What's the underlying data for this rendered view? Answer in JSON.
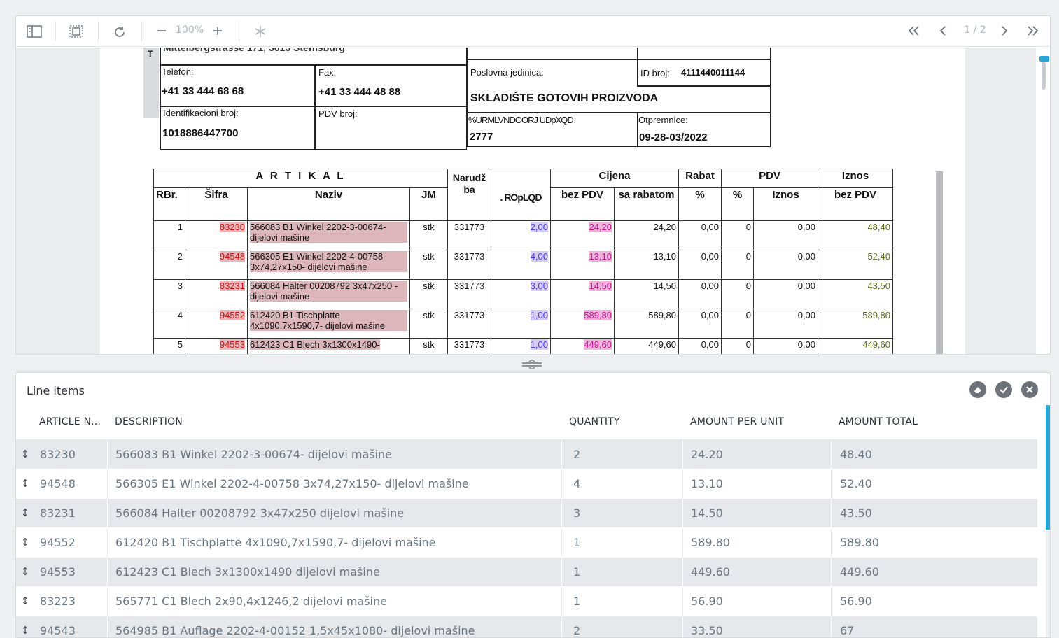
{
  "toolbar": {
    "zoom": "100%",
    "page_indicator": "1 / 2"
  },
  "document": {
    "address": "Mittelbergstrasse 171, 3613 Steffisburg",
    "telefon_label": "Telefon:",
    "telefon": "+41 33 444 68 68",
    "fax_label": "Fax:",
    "fax": "+41 33 444 48 88",
    "ident_label": "Identifikacioni broj:",
    "ident": "1018886447700",
    "pdv_label": "PDV broj:",
    "poslovna_label": "Poslovna jedinica:",
    "id_broj_label": "ID broj:",
    "id_broj": "4111440011144",
    "skladiste": "SKLADIŠTE GOTOVIH PROIZVODA",
    "garbled_label": "%URMLVNDOORJ UDpXQD",
    "garbled_value": "2777",
    "otpremnice_label": "Otpremnice:",
    "otpremnice": "09-28-03/2022",
    "h_artikal": "A R T I K A L",
    "h_cijena": "Cijena",
    "h_rabat": "Rabat",
    "h_pdv": "PDV",
    "h_iznos": "Iznos",
    "h_rbr": "RBr.",
    "h_sifra": "Šifra",
    "h_naziv": "Naziv",
    "h_jm": "JM",
    "h_narudzba": "Narudž ba",
    "h_kolicina": ". ROpLQD",
    "h_bezpdv": "bez PDV",
    "h_sarabatom": "sa rabatom",
    "h_pct": "%",
    "h_pdvpct": "%",
    "h_pdviznos": "Iznos",
    "h_iznosbez": "bez PDV",
    "rows": [
      {
        "rbr": "1",
        "sifra": "83230",
        "naziv": "566083 B1 Winkel 2202-3-00674- dijelovi mašine",
        "jm": "stk",
        "narudzba": "331773",
        "kol": "2,00",
        "cijena": "24,20",
        "rabatom": "24,20",
        "rabat": "0,00",
        "pdv": "0",
        "pdviznos": "0,00",
        "iznos": "48,40"
      },
      {
        "rbr": "2",
        "sifra": "94548",
        "naziv": "566305 E1 Winkel 2202-4-00758 3x74,27x150- dijelovi mašine",
        "jm": "stk",
        "narudzba": "331773",
        "kol": "4,00",
        "cijena": "13,10",
        "rabatom": "13,10",
        "rabat": "0,00",
        "pdv": "0",
        "pdviznos": "0,00",
        "iznos": "52,40"
      },
      {
        "rbr": "3",
        "sifra": "83231",
        "naziv": "566084 Halter 00208792 3x47x250 - dijelovi mašine",
        "jm": "stk",
        "narudzba": "331773",
        "kol": "3,00",
        "cijena": "14,50",
        "rabatom": "14,50",
        "rabat": "0,00",
        "pdv": "0",
        "pdviznos": "0,00",
        "iznos": "43,50"
      },
      {
        "rbr": "4",
        "sifra": "94552",
        "naziv": "612420 B1 Tischplatte 4x1090,7x1590,7- dijelovi mašine",
        "jm": "stk",
        "narudzba": "331773",
        "kol": "1,00",
        "cijena": "589,80",
        "rabatom": "589,80",
        "rabat": "0,00",
        "pdv": "0",
        "pdviznos": "0,00",
        "iznos": "589,80"
      },
      {
        "rbr": "5",
        "sifra": "94553",
        "naziv": "612423 C1 Blech 3x1300x1490-",
        "jm": "stk",
        "narudzba": "331773",
        "kol": "1,00",
        "cijena": "449,60",
        "rabatom": "449,60",
        "rabat": "0,00",
        "pdv": "0",
        "pdviznos": "0,00",
        "iznos": "449,60"
      }
    ]
  },
  "line_items": {
    "title": "Line items",
    "columns": {
      "article": "ARTICLE N...",
      "description": "DESCRIPTION",
      "quantity": "QUANTITY",
      "unit": "AMOUNT PER UNIT",
      "total": "AMOUNT TOTAL"
    },
    "rows": [
      {
        "article": "83230",
        "description": "566083 B1 Winkel 2202-3-00674- dijelovi mašine",
        "quantity": "2",
        "unit": "24.20",
        "total": "48.40"
      },
      {
        "article": "94548",
        "description": "566305 E1 Winkel 2202-4-00758 3x74,27x150- dijelovi mašine",
        "quantity": "4",
        "unit": "13.10",
        "total": "52.40"
      },
      {
        "article": "83231",
        "description": "566084 Halter 00208792 3x47x250 dijelovi mašine",
        "quantity": "3",
        "unit": "14.50",
        "total": "43.50"
      },
      {
        "article": "94552",
        "description": "612420 B1 Tischplatte 4x1090,7x1590,7- dijelovi mašine",
        "quantity": "1",
        "unit": "589.80",
        "total": "589.80"
      },
      {
        "article": "94553",
        "description": "612423 C1 Blech 3x1300x1490 dijelovi mašine",
        "quantity": "1",
        "unit": "449.60",
        "total": "449.60"
      },
      {
        "article": "83223",
        "description": "565771 C1 Blech 2x90,4x1246,2 dijelovi mašine",
        "quantity": "1",
        "unit": "56.90",
        "total": "56.90"
      },
      {
        "article": "94543",
        "description": "564985 B1 Auflage 2202-4-00152 1,5x45x1080- dijelovi mašine",
        "quantity": "2",
        "unit": "33.50",
        "total": "67"
      }
    ]
  },
  "colors": {
    "accent": "#2aa6d6",
    "row_alt": "#e6e8eb",
    "icon_gray": "#6d7379"
  }
}
